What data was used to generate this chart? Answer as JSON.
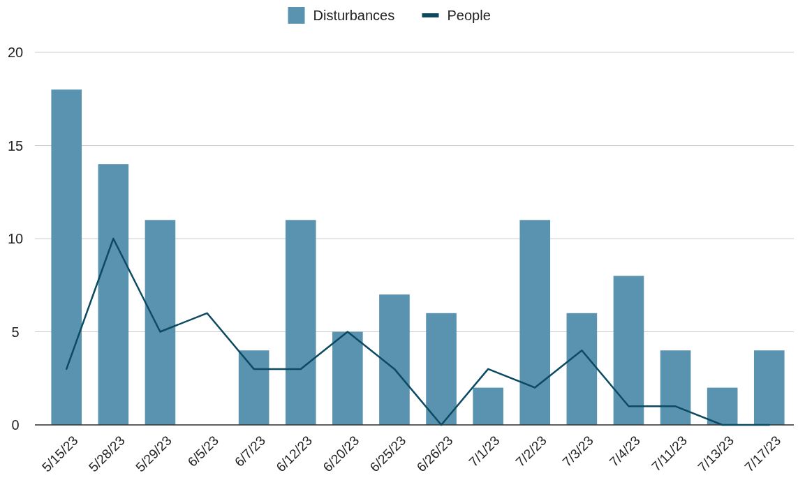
{
  "chart_data": {
    "type": "bar",
    "categories": [
      "5/15/23",
      "5/28/23",
      "5/29/23",
      "6/5/23",
      "6/7/23",
      "6/12/23",
      "6/20/23",
      "6/25/23",
      "6/26/23",
      "7/1/23",
      "7/2/23",
      "7/3/23",
      "7/4/23",
      "7/11/23",
      "7/13/23",
      "7/17/23"
    ],
    "series": [
      {
        "name": "Disturbances",
        "color": "#5a93b0",
        "values": [
          18,
          14,
          11,
          0,
          4,
          11,
          5,
          7,
          6,
          2,
          11,
          6,
          8,
          4,
          2,
          4
        ]
      },
      {
        "name": "People",
        "type": "line",
        "color": "#0c4a62",
        "values": [
          3,
          10,
          5,
          6,
          3,
          3,
          5,
          3,
          0,
          3,
          2,
          4,
          1,
          1,
          0,
          0
        ]
      }
    ],
    "ylim": [
      0,
      20
    ],
    "yticks": [
      0,
      5,
      10,
      15,
      20
    ],
    "grid": "y",
    "legend": "top"
  }
}
